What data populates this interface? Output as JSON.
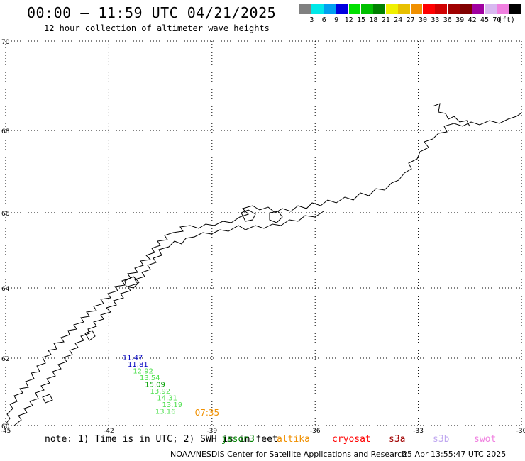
{
  "header": {
    "title": "00:00 – 11:59 UTC 04/21/2025",
    "subtitle": "12 hour collection of altimeter wave heights"
  },
  "legend": {
    "items": [
      {
        "label": "",
        "color": "#808080"
      },
      {
        "label": "3",
        "color": "#00e8e8"
      },
      {
        "label": "6",
        "color": "#00a0f0"
      },
      {
        "label": "9",
        "color": "#0000e0"
      },
      {
        "label": "12",
        "color": "#00e000"
      },
      {
        "label": "15",
        "color": "#00c000"
      },
      {
        "label": "18",
        "color": "#008000"
      },
      {
        "label": "21",
        "color": "#f0f000"
      },
      {
        "label": "24",
        "color": "#e8c000"
      },
      {
        "label": "27",
        "color": "#f09000"
      },
      {
        "label": "30",
        "color": "#ff0000"
      },
      {
        "label": "33",
        "color": "#d00000"
      },
      {
        "label": "36",
        "color": "#a00000"
      },
      {
        "label": "39",
        "color": "#800000"
      },
      {
        "label": "42",
        "color": "#a000a0"
      },
      {
        "label": "45",
        "color": "#d8b8f0"
      },
      {
        "label": "70",
        "color": "#f080e0"
      },
      {
        "label": "(ft)",
        "color": "#000000"
      }
    ]
  },
  "map": {
    "lat_ticks": [
      {
        "value": 70,
        "label": "70"
      },
      {
        "value": 68,
        "label": "68"
      },
      {
        "value": 66,
        "label": "66"
      },
      {
        "value": 64,
        "label": "64"
      },
      {
        "value": 62,
        "label": "62"
      },
      {
        "value": 60,
        "label": "60"
      }
    ],
    "lon_ticks": [
      {
        "value": -45,
        "label": "-45"
      },
      {
        "value": -42,
        "label": "-42"
      },
      {
        "value": -39,
        "label": "-39"
      },
      {
        "value": -36,
        "label": "-36"
      },
      {
        "value": -33,
        "label": "-33"
      },
      {
        "value": -30,
        "label": "-30"
      }
    ],
    "observations": [
      {
        "text": "11.47",
        "color": "#0000c0",
        "lon": -41.6,
        "lat": 61.95
      },
      {
        "text": "11.81",
        "color": "#0000c0",
        "lon": -41.45,
        "lat": 61.75
      },
      {
        "text": "12.92",
        "color": "#50e050",
        "lon": -41.3,
        "lat": 61.55
      },
      {
        "text": "13.54",
        "color": "#50e050",
        "lon": -41.1,
        "lat": 61.35
      },
      {
        "text": "15.09",
        "color": "#00a000",
        "lon": -40.95,
        "lat": 61.15
      },
      {
        "text": "13.92",
        "color": "#50e050",
        "lon": -40.8,
        "lat": 60.95
      },
      {
        "text": "14.31",
        "color": "#50e050",
        "lon": -40.6,
        "lat": 60.75
      },
      {
        "text": "13.19",
        "color": "#50e050",
        "lon": -40.45,
        "lat": 60.55
      },
      {
        "text": "13.16",
        "color": "#50e050",
        "lon": -40.65,
        "lat": 60.35
      },
      {
        "text": "07:35",
        "color": "#f09000",
        "lon": -39.5,
        "lat": 60.3
      }
    ]
  },
  "notes": {
    "text": "note: 1) Time is in UTC; 2) SWH is in feet",
    "satellites": [
      {
        "name": "jason3",
        "color": "#008000"
      },
      {
        "name": "altika",
        "color": "#f09000"
      },
      {
        "name": "cryosat",
        "color": "#ff0000"
      },
      {
        "name": "s3a",
        "color": "#a00000"
      },
      {
        "name": "s3b",
        "color": "#c0a8f0"
      },
      {
        "name": "swot",
        "color": "#f080e0"
      }
    ]
  },
  "footer": {
    "credit": "NOAA/NESDIS Center for Satellite Applications and Research",
    "timestamp": "25 Apr 13:55:47 UTC 2025"
  }
}
